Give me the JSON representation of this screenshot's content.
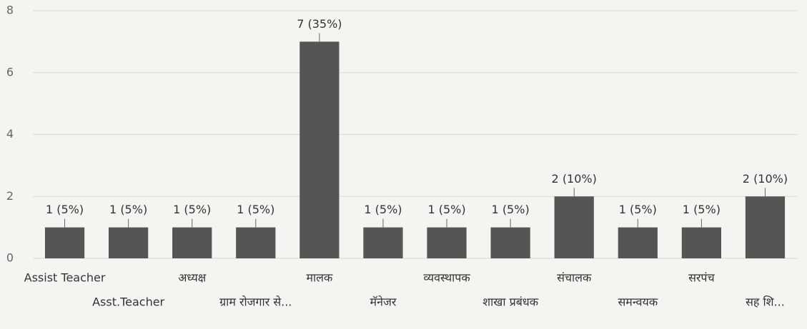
{
  "chart_data": {
    "type": "bar",
    "categories": [
      "Assist Teacher",
      "Asst.Teacher",
      "अध्यक्ष",
      "ग्राम रोजगार से...",
      "मालक",
      "मॅनेजर",
      "व्यवस्थापक",
      "शाखा प्रबंधक",
      "संचालक",
      "समन्वयक",
      "सरपंच",
      "सह शि..."
    ],
    "values": [
      1,
      1,
      1,
      1,
      7,
      1,
      1,
      1,
      2,
      1,
      1,
      2
    ],
    "value_labels": [
      "1 (5%)",
      "1 (5%)",
      "1 (5%)",
      "1 (5%)",
      "7 (35%)",
      "1 (5%)",
      "1 (5%)",
      "1 (5%)",
      "2 (10%)",
      "1 (5%)",
      "1 (5%)",
      "2 (10%)"
    ],
    "color": "#555555",
    "ylim": [
      0,
      8
    ],
    "yticks": [
      0,
      2,
      4,
      6,
      8
    ],
    "grid": true
  }
}
